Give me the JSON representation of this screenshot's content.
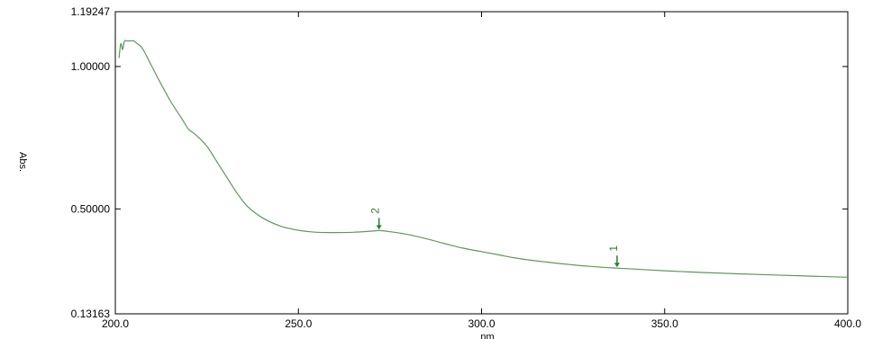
{
  "chart_data": {
    "type": "line",
    "title": "",
    "xlabel": "nm",
    "ylabel": "Abs.",
    "xlim": [
      200.0,
      400.0
    ],
    "ylim": [
      0.13163,
      1.19247
    ],
    "x_ticks": [
      "200.0",
      "250.0",
      "300.0",
      "350.0",
      "400.0"
    ],
    "y_ticks": [
      "0.13163",
      "0.50000",
      "1.00000",
      "1.19247"
    ],
    "grid": false,
    "line_color": "#5a9a5a",
    "marker_color": "#2e7d32",
    "series": [
      {
        "x": [
          201.0,
          201.5,
          202.0,
          202.5,
          203.0,
          204.0,
          205.0,
          206.0,
          207.0,
          208.0,
          210.0,
          212.0,
          215.0,
          218.0,
          220.0,
          222.0,
          225.0,
          228.0,
          230.0,
          233.0,
          236.0,
          240.0,
          245.0,
          250.0,
          255.0,
          260.0,
          265.0,
          270.0,
          272.0,
          275.0,
          280.0,
          285.0,
          290.0,
          295.0,
          300.0,
          305.0,
          310.0,
          320.0,
          330.0,
          337.0,
          340.0,
          350.0,
          360.0,
          370.0,
          380.0,
          390.0,
          400.0
        ],
        "y": [
          1.03,
          1.08,
          1.06,
          1.09,
          1.09,
          1.09,
          1.09,
          1.08,
          1.07,
          1.05,
          1.0,
          0.95,
          0.88,
          0.82,
          0.78,
          0.76,
          0.72,
          0.66,
          0.62,
          0.56,
          0.51,
          0.47,
          0.44,
          0.425,
          0.418,
          0.417,
          0.418,
          0.422,
          0.424,
          0.42,
          0.41,
          0.395,
          0.378,
          0.362,
          0.35,
          0.338,
          0.326,
          0.31,
          0.298,
          0.292,
          0.29,
          0.283,
          0.277,
          0.272,
          0.268,
          0.264,
          0.26
        ]
      }
    ],
    "annotations": [
      {
        "label": "1",
        "x": 337.0,
        "y": 0.292
      },
      {
        "label": "2",
        "x": 272.0,
        "y": 0.424
      }
    ]
  }
}
